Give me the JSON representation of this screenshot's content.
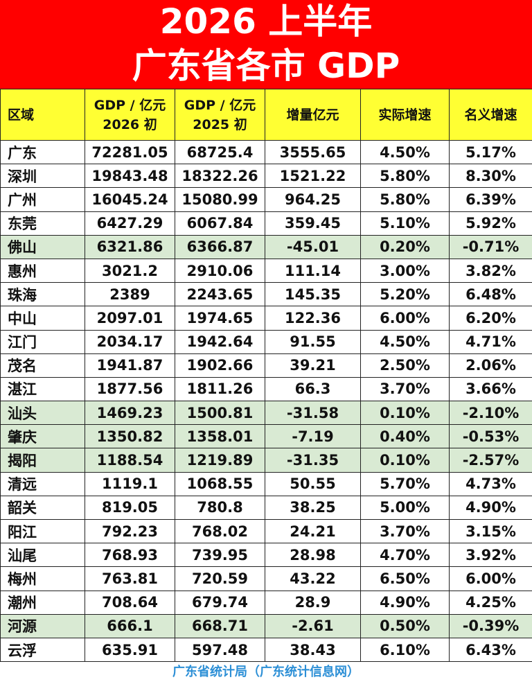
{
  "header": {
    "title_line1": "2026 上半年",
    "title_line2": "广东省各市 GDP"
  },
  "colors": {
    "banner_bg": "#ff0000",
    "header_bg": "#ffff33",
    "negative_row_bg": "#d9ead3",
    "source_text": "#2c8fd6"
  },
  "chart_data": {
    "type": "table",
    "title": "2026 上半年 广东省各市 GDP",
    "columns": [
      {
        "line1": "区域",
        "line2": ""
      },
      {
        "line1": "GDP / 亿元",
        "line2": "2026 初"
      },
      {
        "line1": "GDP / 亿元",
        "line2": "2025 初"
      },
      {
        "line1": "增量亿元",
        "line2": ""
      },
      {
        "line1": "实际增速",
        "line2": ""
      },
      {
        "line1": "名义增速",
        "line2": ""
      }
    ],
    "rows": [
      {
        "city": "广东",
        "gdp_2026": "72281.05",
        "gdp_2025": "68725.4",
        "increment": "3555.65",
        "real_growth": "4.50%",
        "nominal_growth": "5.17%",
        "highlight": false
      },
      {
        "city": "深圳",
        "gdp_2026": "19843.48",
        "gdp_2025": "18322.26",
        "increment": "1521.22",
        "real_growth": "5.80%",
        "nominal_growth": "8.30%",
        "highlight": false
      },
      {
        "city": "广州",
        "gdp_2026": "16045.24",
        "gdp_2025": "15080.99",
        "increment": "964.25",
        "real_growth": "5.80%",
        "nominal_growth": "6.39%",
        "highlight": false
      },
      {
        "city": "东莞",
        "gdp_2026": "6427.29",
        "gdp_2025": "6067.84",
        "increment": "359.45",
        "real_growth": "5.10%",
        "nominal_growth": "5.92%",
        "highlight": false
      },
      {
        "city": "佛山",
        "gdp_2026": "6321.86",
        "gdp_2025": "6366.87",
        "increment": "-45.01",
        "real_growth": "0.20%",
        "nominal_growth": "-0.71%",
        "highlight": true
      },
      {
        "city": "惠州",
        "gdp_2026": "3021.2",
        "gdp_2025": "2910.06",
        "increment": "111.14",
        "real_growth": "3.00%",
        "nominal_growth": "3.82%",
        "highlight": false
      },
      {
        "city": "珠海",
        "gdp_2026": "2389",
        "gdp_2025": "2243.65",
        "increment": "145.35",
        "real_growth": "5.20%",
        "nominal_growth": "6.48%",
        "highlight": false
      },
      {
        "city": "中山",
        "gdp_2026": "2097.01",
        "gdp_2025": "1974.65",
        "increment": "122.36",
        "real_growth": "6.00%",
        "nominal_growth": "6.20%",
        "highlight": false
      },
      {
        "city": "江门",
        "gdp_2026": "2034.17",
        "gdp_2025": "1942.64",
        "increment": "91.55",
        "real_growth": "4.50%",
        "nominal_growth": "4.71%",
        "highlight": false
      },
      {
        "city": "茂名",
        "gdp_2026": "1941.87",
        "gdp_2025": "1902.66",
        "increment": "39.21",
        "real_growth": "2.50%",
        "nominal_growth": "2.06%",
        "highlight": false
      },
      {
        "city": "湛江",
        "gdp_2026": "1877.56",
        "gdp_2025": "1811.26",
        "increment": "66.3",
        "real_growth": "3.70%",
        "nominal_growth": "3.66%",
        "highlight": false
      },
      {
        "city": "汕头",
        "gdp_2026": "1469.23",
        "gdp_2025": "1500.81",
        "increment": "-31.58",
        "real_growth": "0.10%",
        "nominal_growth": "-2.10%",
        "highlight": true
      },
      {
        "city": "肇庆",
        "gdp_2026": "1350.82",
        "gdp_2025": "1358.01",
        "increment": "-7.19",
        "real_growth": "0.40%",
        "nominal_growth": "-0.53%",
        "highlight": true
      },
      {
        "city": "揭阳",
        "gdp_2026": "1188.54",
        "gdp_2025": "1219.89",
        "increment": "-31.35",
        "real_growth": "0.10%",
        "nominal_growth": "-2.57%",
        "highlight": true
      },
      {
        "city": "清远",
        "gdp_2026": "1119.1",
        "gdp_2025": "1068.55",
        "increment": "50.55",
        "real_growth": "5.70%",
        "nominal_growth": "4.73%",
        "highlight": false
      },
      {
        "city": "韶关",
        "gdp_2026": "819.05",
        "gdp_2025": "780.8",
        "increment": "38.25",
        "real_growth": "5.00%",
        "nominal_growth": "4.90%",
        "highlight": false
      },
      {
        "city": "阳江",
        "gdp_2026": "792.23",
        "gdp_2025": "768.02",
        "increment": "24.21",
        "real_growth": "3.70%",
        "nominal_growth": "3.15%",
        "highlight": false
      },
      {
        "city": "汕尾",
        "gdp_2026": "768.93",
        "gdp_2025": "739.95",
        "increment": "28.98",
        "real_growth": "4.70%",
        "nominal_growth": "3.92%",
        "highlight": false
      },
      {
        "city": "梅州",
        "gdp_2026": "763.81",
        "gdp_2025": "720.59",
        "increment": "43.22",
        "real_growth": "6.50%",
        "nominal_growth": "6.00%",
        "highlight": false
      },
      {
        "city": "潮州",
        "gdp_2026": "708.64",
        "gdp_2025": "679.74",
        "increment": "28.9",
        "real_growth": "4.90%",
        "nominal_growth": "4.25%",
        "highlight": false
      },
      {
        "city": "河源",
        "gdp_2026": "666.1",
        "gdp_2025": "668.71",
        "increment": "-2.61",
        "real_growth": "0.50%",
        "nominal_growth": "-0.39%",
        "highlight": true
      },
      {
        "city": "云浮",
        "gdp_2026": "635.91",
        "gdp_2025": "597.48",
        "increment": "38.43",
        "real_growth": "6.10%",
        "nominal_growth": "6.43%",
        "highlight": false
      }
    ]
  },
  "footer": {
    "source": "广东省统计局（广东统计信息网）"
  }
}
